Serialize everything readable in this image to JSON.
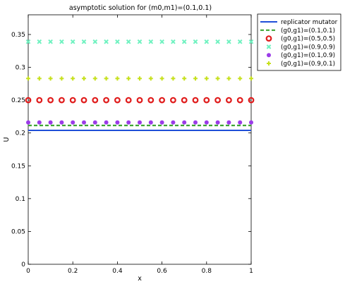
{
  "chart_data": {
    "type": "line",
    "title": "asymptotic solution for (m0,m1)=(0.1,0.1)",
    "xlabel": "x",
    "ylabel": "U",
    "xlim": [
      0,
      1
    ],
    "ylim": [
      0,
      0.38
    ],
    "xticks": [
      "0",
      "0.2",
      "0.4",
      "0.6",
      "0.8",
      "1"
    ],
    "yticks": [
      "0",
      "0.05",
      "0.1",
      "0.15",
      "0.2",
      "0.25",
      "0.3",
      "0.35"
    ],
    "grid": false,
    "legend_position": "outside top-right",
    "x": [
      0,
      0.05,
      0.1,
      0.15,
      0.2,
      0.25,
      0.3,
      0.35,
      0.4,
      0.45,
      0.5,
      0.55,
      0.6,
      0.65,
      0.7,
      0.75,
      0.8,
      0.85,
      0.9,
      0.95,
      1
    ],
    "series": [
      {
        "name": "replicator mutator",
        "value": 0.204,
        "style": "solid",
        "marker": "none",
        "color": "#1f4fd8"
      },
      {
        "name": "(g0,g1)=(0.1,0.1)",
        "value": 0.2115,
        "style": "dashed",
        "marker": "none",
        "color": "#3fa535"
      },
      {
        "name": "(g0,g1)=(0.5,0.5)",
        "value": 0.25,
        "style": "none",
        "marker": "circle",
        "color": "#e01b1b"
      },
      {
        "name": "(g0,g1)=(0.9,0.9)",
        "value": 0.339,
        "style": "none",
        "marker": "x",
        "color": "#6ff2c0"
      },
      {
        "name": "(g0,g1)=(0.1,0.9)",
        "value": 0.216,
        "style": "none",
        "marker": "dot",
        "color": "#9b3be8"
      },
      {
        "name": "(g0,g1)=(0.9,0.1)",
        "value": 0.283,
        "style": "none",
        "marker": "plus",
        "color": "#c6e01b"
      }
    ]
  }
}
